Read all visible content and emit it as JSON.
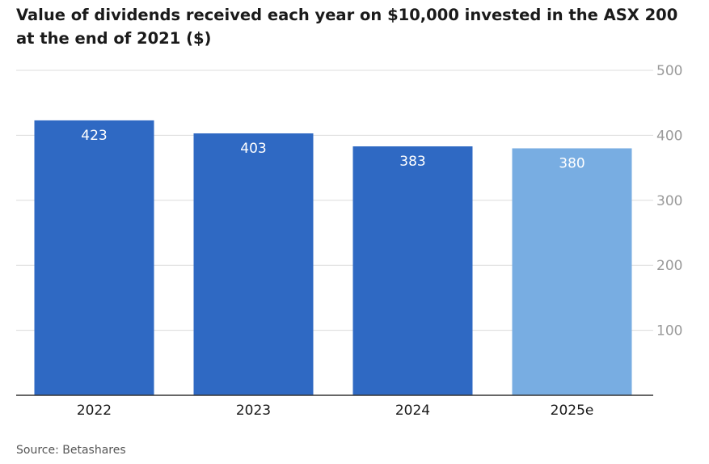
{
  "title": "Value of dividends received each year on $10,000 invested in the ASX 200 at the end of 2021 ($)",
  "source": "Source: Betashares",
  "chart_data": {
    "type": "bar",
    "title": "Value of dividends received each year on $10,000 invested in the ASX 200 at the end of 2021 ($)",
    "categories": [
      "2022",
      "2023",
      "2024",
      "2025e"
    ],
    "values": [
      423,
      403,
      383,
      380
    ],
    "data_labels": [
      "423",
      "403",
      "383",
      "380"
    ],
    "bar_colors": [
      "#2f69c3",
      "#2f69c3",
      "#2f69c3",
      "#78ade2"
    ],
    "xlabel": "",
    "ylabel": "",
    "ylim": [
      0,
      500
    ],
    "yticks": [
      100,
      200,
      300,
      400,
      500
    ],
    "ytick_labels": [
      "100",
      "200",
      "300",
      "400",
      "500"
    ],
    "y_axis_position": "right",
    "grid": true,
    "legend": "none"
  }
}
